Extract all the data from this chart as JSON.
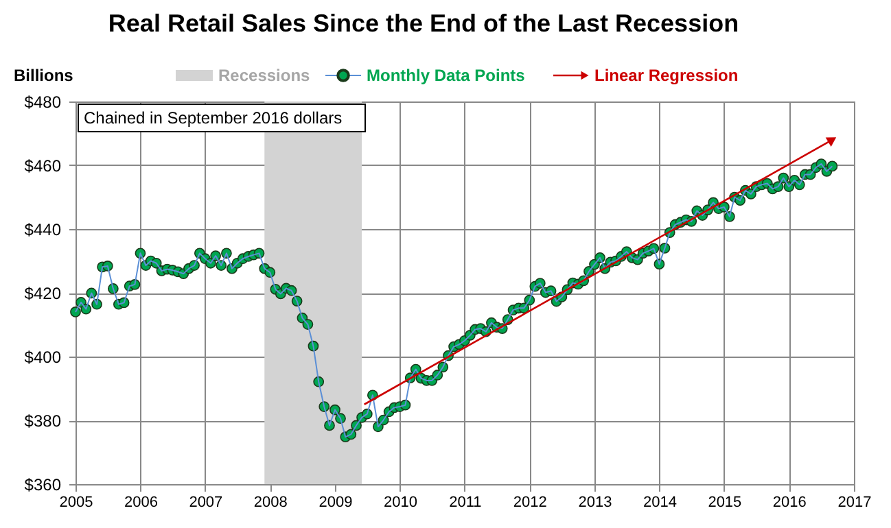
{
  "chart_data": {
    "type": "line",
    "title": "Real  Retail Sales Since the End of the Last Recession",
    "ylabel": "Billions",
    "annotations": [
      "Chained in September 2016 dollars"
    ],
    "xlim": [
      "2005-01-01",
      "2017-01-01"
    ],
    "xticks": [
      "2005",
      "2006",
      "2007",
      "2008",
      "2009",
      "2010",
      "2011",
      "2012",
      "2013",
      "2014",
      "2015",
      "2016",
      "2017"
    ],
    "ylim": [
      360,
      480
    ],
    "yticks": [
      {
        "value": 360,
        "label": "$360"
      },
      {
        "value": 380,
        "label": "$380"
      },
      {
        "value": 400,
        "label": "$400"
      },
      {
        "value": 420,
        "label": "$420"
      },
      {
        "value": 440,
        "label": "$440"
      },
      {
        "value": 460,
        "label": "$460"
      },
      {
        "value": 480,
        "label": "$480"
      }
    ],
    "grid": true,
    "legend": "top",
    "bands": [
      {
        "axis": "x",
        "from": "2007-12",
        "to": "2009-06",
        "label": "Recessions",
        "color": "#d3d3d3"
      }
    ],
    "series": [
      {
        "name": "Monthly Data Points",
        "marker": "circle",
        "color": "#00a651",
        "x": [
          "2005-01",
          "2005-02",
          "2005-03",
          "2005-04",
          "2005-05",
          "2005-06",
          "2005-07",
          "2005-08",
          "2005-09",
          "2005-10",
          "2005-11",
          "2005-12",
          "2006-01",
          "2006-02",
          "2006-03",
          "2006-04",
          "2006-05",
          "2006-06",
          "2006-07",
          "2006-08",
          "2006-09",
          "2006-10",
          "2006-11",
          "2006-12",
          "2007-01",
          "2007-02",
          "2007-03",
          "2007-04",
          "2007-05",
          "2007-06",
          "2007-07",
          "2007-08",
          "2007-09",
          "2007-10",
          "2007-11",
          "2007-12",
          "2008-01",
          "2008-02",
          "2008-03",
          "2008-04",
          "2008-05",
          "2008-06",
          "2008-07",
          "2008-08",
          "2008-09",
          "2008-10",
          "2008-11",
          "2008-12",
          "2009-01",
          "2009-02",
          "2009-03",
          "2009-04",
          "2009-05",
          "2009-06",
          "2009-07",
          "2009-08",
          "2009-09",
          "2009-10",
          "2009-11",
          "2009-12",
          "2010-01",
          "2010-02",
          "2010-03",
          "2010-04",
          "2010-05",
          "2010-06",
          "2010-07",
          "2010-08",
          "2010-09",
          "2010-10",
          "2010-11",
          "2010-12",
          "2011-01",
          "2011-02",
          "2011-03",
          "2011-04",
          "2011-05",
          "2011-06",
          "2011-07",
          "2011-08",
          "2011-09",
          "2011-10",
          "2011-11",
          "2011-12",
          "2012-01",
          "2012-02",
          "2012-03",
          "2012-04",
          "2012-05",
          "2012-06",
          "2012-07",
          "2012-08",
          "2012-09",
          "2012-10",
          "2012-11",
          "2012-12",
          "2013-01",
          "2013-02",
          "2013-03",
          "2013-04",
          "2013-05",
          "2013-06",
          "2013-07",
          "2013-08",
          "2013-09",
          "2013-10",
          "2013-11",
          "2013-12",
          "2014-01",
          "2014-02",
          "2014-03",
          "2014-04",
          "2014-05",
          "2014-06",
          "2014-07",
          "2014-08",
          "2014-09",
          "2014-10",
          "2014-11",
          "2014-12",
          "2015-01",
          "2015-02",
          "2015-03",
          "2015-04",
          "2015-05",
          "2015-06",
          "2015-07",
          "2015-08",
          "2015-09",
          "2015-10",
          "2015-11",
          "2015-12",
          "2016-01",
          "2016-02",
          "2016-03",
          "2016-04",
          "2016-05",
          "2016-06",
          "2016-07",
          "2016-08",
          "2016-09"
        ],
        "values": [
          414.0,
          417.0,
          414.9,
          419.9,
          416.4,
          428.1,
          428.4,
          421.3,
          416.4,
          416.9,
          422.1,
          422.6,
          432.4,
          428.6,
          430.0,
          429.3,
          426.9,
          427.4,
          427.1,
          426.6,
          426.0,
          427.6,
          428.6,
          432.4,
          430.7,
          429.3,
          431.6,
          428.6,
          432.4,
          427.6,
          429.3,
          430.7,
          431.4,
          431.9,
          432.4,
          427.6,
          426.4,
          421.1,
          419.7,
          421.4,
          420.7,
          417.4,
          412.1,
          410.1,
          403.3,
          392.1,
          384.3,
          378.4,
          383.3,
          380.6,
          374.8,
          375.6,
          378.4,
          380.9,
          382.0,
          387.9,
          378.0,
          380.1,
          382.7,
          384.0,
          384.3,
          384.8,
          393.3,
          396.0,
          393.2,
          392.5,
          392.5,
          394.2,
          396.7,
          400.3,
          403.1,
          403.8,
          405.0,
          406.7,
          408.5,
          408.8,
          407.8,
          410.6,
          409.2,
          408.8,
          411.6,
          414.6,
          415.2,
          415.2,
          417.7,
          422.0,
          423.0,
          420.1,
          420.6,
          417.3,
          418.7,
          421.0,
          423.1,
          422.7,
          423.8,
          426.7,
          428.9,
          431.0,
          427.6,
          429.6,
          430.0,
          431.4,
          432.9,
          431.0,
          430.4,
          432.4,
          433.1,
          433.9,
          429.0,
          434.0,
          438.9,
          441.4,
          442.1,
          442.9,
          442.4,
          445.7,
          444.3,
          446.0,
          448.3,
          446.4,
          446.9,
          443.9,
          450.0,
          449.0,
          452.1,
          451.0,
          453.3,
          453.9,
          454.3,
          452.6,
          453.3,
          456.0,
          453.3,
          455.3,
          453.9,
          457.1,
          457.1,
          459.3,
          460.4,
          458.1,
          459.7
        ]
      },
      {
        "name": "Linear Regression",
        "color": "#cc0000",
        "x": [
          "2009-06-15",
          "2016-09-01"
        ],
        "values": [
          385,
          468
        ]
      }
    ]
  }
}
